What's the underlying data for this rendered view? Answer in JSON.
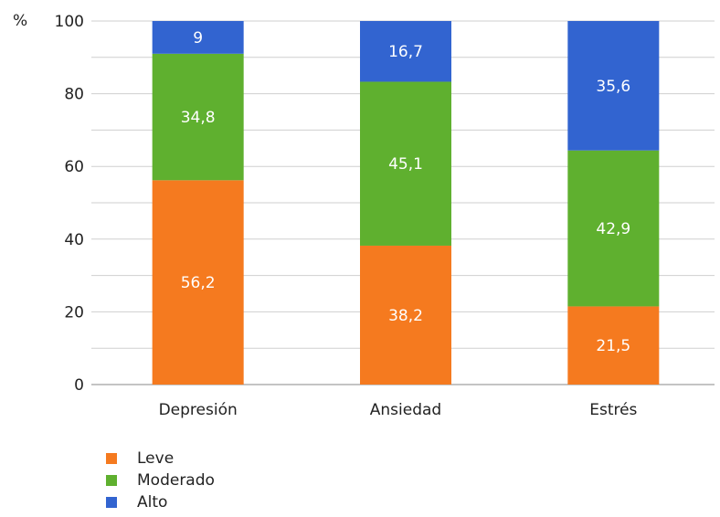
{
  "chart_data": {
    "type": "bar",
    "stacked": true,
    "ylabel": "%",
    "ylim": [
      0,
      100
    ],
    "yticks": [
      0,
      20,
      40,
      60,
      80,
      100
    ],
    "grid": true,
    "legend_position": "bottom-left",
    "categories": [
      "Depresión",
      "Ansiedad",
      "Estrés"
    ],
    "series": [
      {
        "name": "Leve",
        "values": [
          56.2,
          38.2,
          21.5
        ],
        "labels": [
          "56,2",
          "38,2",
          "21,5"
        ],
        "color": "#f57a1f"
      },
      {
        "name": "Moderado",
        "values": [
          34.8,
          45.1,
          42.9
        ],
        "labels": [
          "34,8",
          "45,1",
          "42,9"
        ],
        "color": "#5fb02f"
      },
      {
        "name": "Alto",
        "values": [
          9,
          16.7,
          35.6
        ],
        "labels": [
          "9",
          "16,7",
          "35,6"
        ],
        "color": "#3264d0"
      }
    ]
  }
}
